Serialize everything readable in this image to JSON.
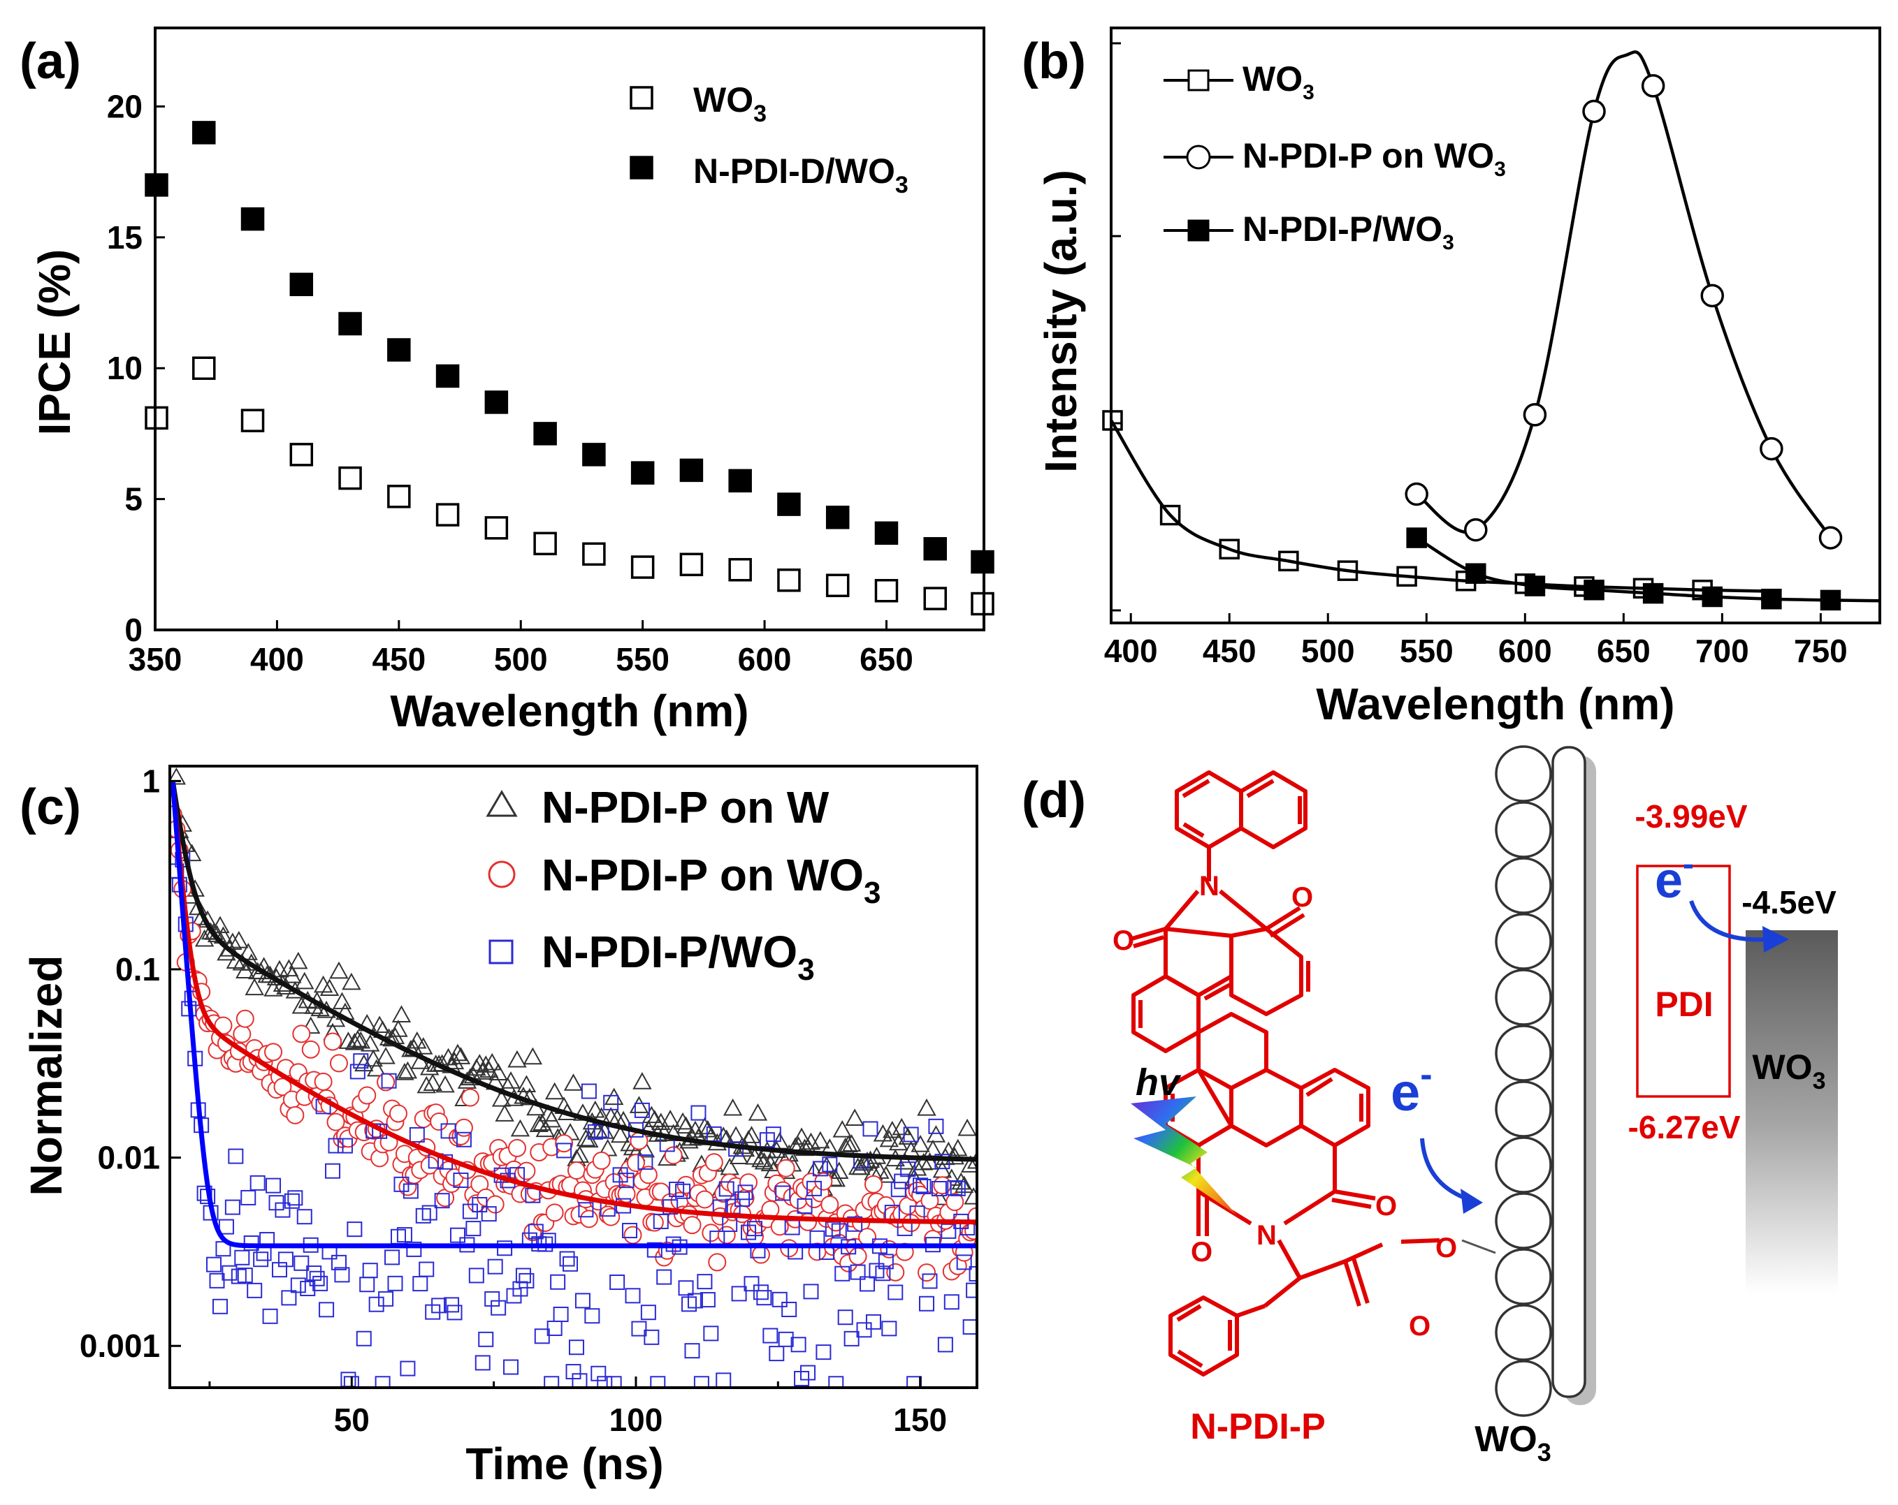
{
  "chart_data": [
    {
      "panel": "(a)",
      "type": "scatter",
      "title": "",
      "xlabel": "Wavelength (nm)",
      "ylabel": "IPCE (%)",
      "xlim": [
        350,
        690
      ],
      "ylim": [
        0,
        23
      ],
      "xticks": [
        350,
        400,
        450,
        500,
        550,
        600,
        650
      ],
      "yticks": [
        0,
        5,
        10,
        15,
        20
      ],
      "legend": "top-right",
      "series": [
        {
          "name": "WO3",
          "label_main": "WO",
          "label_sub": "3",
          "marker": "open-square",
          "color": "#000000",
          "x": [
            350,
            370,
            390,
            410,
            430,
            450,
            470,
            490,
            510,
            530,
            550,
            570,
            590,
            610,
            630,
            650,
            670,
            690
          ],
          "y": [
            8.1,
            10.0,
            8.0,
            6.7,
            5.8,
            5.1,
            4.4,
            3.9,
            3.3,
            2.9,
            2.4,
            2.5,
            2.3,
            1.9,
            1.7,
            1.5,
            1.2,
            1.0
          ]
        },
        {
          "name": "N-PDI-D/WO3",
          "label_main": "N-PDI-D/WO",
          "label_sub": "3",
          "marker": "filled-square",
          "color": "#000000",
          "x": [
            350,
            370,
            390,
            410,
            430,
            450,
            470,
            490,
            510,
            530,
            550,
            570,
            590,
            610,
            630,
            650,
            670,
            690
          ],
          "y": [
            17.0,
            19.0,
            15.7,
            13.2,
            11.7,
            10.7,
            9.7,
            8.7,
            7.5,
            6.7,
            6.0,
            6.1,
            5.7,
            4.8,
            4.3,
            3.7,
            3.1,
            2.6
          ]
        }
      ]
    },
    {
      "panel": "(b)",
      "type": "line",
      "title": "",
      "xlabel": "Wavelength (nm)",
      "ylabel": "Intensity (a.u.)",
      "xlim": [
        390,
        780
      ],
      "ylim": [
        0,
        1
      ],
      "xticks": [
        400,
        450,
        500,
        550,
        600,
        650,
        700,
        750
      ],
      "y_tick_labels": "none",
      "legend": "top-left",
      "series": [
        {
          "name": "WO3",
          "label_main": "WO",
          "label_sub": "3",
          "marker": "open-square",
          "x": [
            390,
            420,
            450,
            480,
            510,
            540,
            570,
            600,
            630,
            660,
            690
          ],
          "y": [
            0.335,
            0.168,
            0.108,
            0.087,
            0.07,
            0.06,
            0.052,
            0.047,
            0.042,
            0.039,
            0.036
          ],
          "curve_end_x": 720,
          "curve_end_y": 0.034
        },
        {
          "name": "N-PDI-P on WO3",
          "label_main": "N-PDI-P on WO",
          "label_sub": "3",
          "marker": "open-circle",
          "x": [
            545,
            575,
            605,
            635,
            665,
            695,
            725,
            755
          ],
          "y": [
            0.205,
            0.142,
            0.345,
            0.88,
            0.925,
            0.555,
            0.285,
            0.128
          ],
          "peak_x": 652,
          "peak_y": 0.98
        },
        {
          "name": "N-PDI-P/WO3",
          "label_main": "N-PDI-P/WO",
          "label_sub": "3",
          "marker": "filled-square",
          "x": [
            545,
            575,
            605,
            635,
            665,
            695,
            725,
            755
          ],
          "y": [
            0.128,
            0.065,
            0.043,
            0.036,
            0.03,
            0.024,
            0.02,
            0.018
          ],
          "curve_end_x": 780,
          "curve_end_y": 0.017
        }
      ]
    },
    {
      "panel": "(c)",
      "type": "scatter",
      "title": "",
      "xlabel": "Time (ns)",
      "ylabel": "Normalized",
      "yscale": "log",
      "xlim": [
        18,
        160
      ],
      "ylim": [
        0.0006,
        1.2
      ],
      "xticks": [
        50,
        100,
        150
      ],
      "yticks": [
        0.001,
        0.01,
        0.1,
        1
      ],
      "ytick_labels": [
        "0.001",
        "0.01",
        "0.1",
        "1"
      ],
      "legend": "top-right",
      "series": [
        {
          "name": "N-PDI-P on W",
          "label_main": "N-PDI-P on W",
          "label_sub": "",
          "marker": "open-triangle",
          "color": "#333333",
          "fit_color": "#111111",
          "fit": {
            "x0": 18.5,
            "amps": [
              0.82,
              0.18
            ],
            "taus": [
              1.8,
              22
            ],
            "offset": 0.0095
          },
          "noise": 0.08
        },
        {
          "name": "N-PDI-P on WO3",
          "label_main": "N-PDI-P on WO",
          "label_sub": "3",
          "marker": "open-circle",
          "color": "#e53030",
          "fit_color": "#e00000",
          "fit": {
            "x0": 18.5,
            "amps": [
              0.92,
              0.06
            ],
            "taus": [
              1.2,
              20
            ],
            "offset": 0.0045
          },
          "noise": 0.12
        },
        {
          "name": "N-PDI-P/WO3",
          "label_main": "N-PDI-P/WO",
          "label_sub": "3",
          "marker": "open-square",
          "color": "#2a2ad6",
          "fit_color": "#0000ff",
          "fit": {
            "x0": 18.5,
            "amps": [
              0.995,
              0.0
            ],
            "taus": [
              1.1,
              5
            ],
            "offset": 0.0034
          },
          "noise": 0.32
        }
      ]
    }
  ],
  "panel_d": {
    "label": "(d)",
    "molecule_name": "N-PDI-P",
    "hv": "hv",
    "electron_left": "e",
    "electron_left_sup": "-",
    "electron_right": "e",
    "electron_right_sup": "-",
    "substrate_main": "WO",
    "substrate_sub": "3",
    "wo3_band_main": "WO",
    "wo3_band_sub": "3",
    "pdi_label": "PDI",
    "lumo_level": "-3.99eV",
    "homo_level": "-6.27eV",
    "cb_level": "-4.5eV",
    "molecule_color": "#e00000",
    "electron_color": "#1a3fd6",
    "oxygen_label": "O",
    "nitrogen_label": "N"
  }
}
